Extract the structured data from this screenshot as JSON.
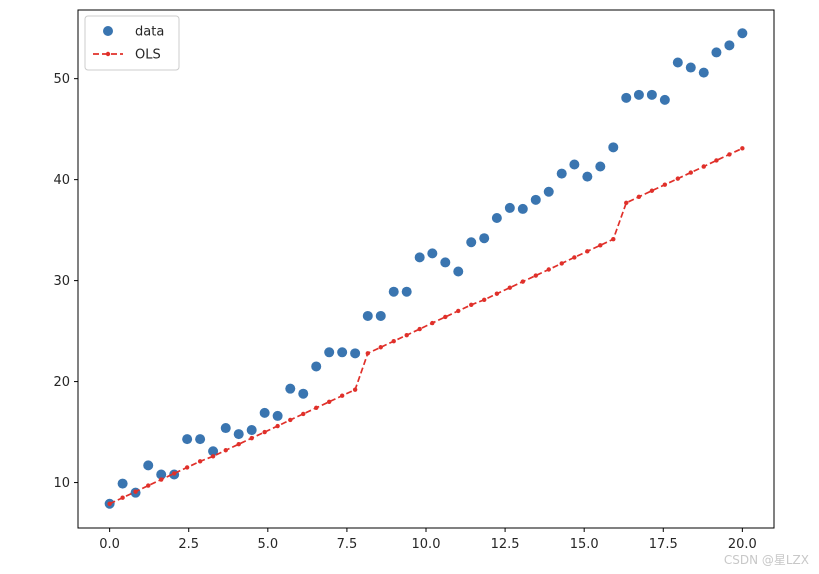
{
  "chart_data": {
    "type": "scatter",
    "title": "",
    "xlabel": "",
    "ylabel": "",
    "xlim": [
      -1.0,
      21.0
    ],
    "ylim": [
      5.5,
      56.8
    ],
    "grid": false,
    "legend_position": "top-left",
    "x_ticks": [
      {
        "value": 0.0,
        "label": "0.0"
      },
      {
        "value": 2.5,
        "label": "2.5"
      },
      {
        "value": 5.0,
        "label": "5.0"
      },
      {
        "value": 7.5,
        "label": "7.5"
      },
      {
        "value": 10.0,
        "label": "10.0"
      },
      {
        "value": 12.5,
        "label": "12.5"
      },
      {
        "value": 15.0,
        "label": "15.0"
      },
      {
        "value": 17.5,
        "label": "17.5"
      },
      {
        "value": 20.0,
        "label": "20.0"
      }
    ],
    "y_ticks": [
      {
        "value": 10,
        "label": "10"
      },
      {
        "value": 20,
        "label": "20"
      },
      {
        "value": 30,
        "label": "30"
      },
      {
        "value": 40,
        "label": "40"
      },
      {
        "value": 50,
        "label": "50"
      }
    ],
    "series": [
      {
        "name": "data",
        "style": "markers",
        "color": "#3a75b0",
        "x": [
          0.0,
          0.41,
          0.82,
          1.22,
          1.63,
          2.04,
          2.45,
          2.86,
          3.27,
          3.67,
          4.08,
          4.49,
          4.9,
          5.31,
          5.71,
          6.12,
          6.53,
          6.94,
          7.35,
          7.76,
          8.16,
          8.57,
          8.98,
          9.39,
          9.8,
          10.2,
          10.61,
          11.02,
          11.43,
          11.84,
          12.24,
          12.65,
          13.06,
          13.47,
          13.88,
          14.29,
          14.69,
          15.1,
          15.51,
          15.92,
          16.33,
          16.73,
          17.14,
          17.55,
          17.96,
          18.37,
          18.78,
          19.18,
          19.59,
          20.0
        ],
        "y": [
          7.9,
          9.9,
          9.0,
          11.7,
          10.8,
          10.8,
          14.3,
          14.3,
          13.1,
          15.4,
          14.8,
          15.2,
          16.9,
          16.6,
          19.3,
          18.8,
          21.5,
          22.9,
          22.9,
          22.8,
          26.5,
          26.5,
          28.9,
          28.9,
          32.3,
          32.7,
          31.8,
          30.9,
          33.8,
          34.2,
          36.2,
          37.2,
          37.1,
          38.0,
          38.8,
          40.6,
          41.5,
          40.3,
          41.3,
          43.2,
          48.1,
          48.4,
          48.4,
          47.9,
          51.6,
          51.1,
          50.6,
          52.6,
          53.3,
          54.5
        ]
      },
      {
        "name": "OLS",
        "style": "dashed-line-markers",
        "color": "#e0302a",
        "x": [
          0.0,
          0.41,
          0.82,
          1.22,
          1.63,
          2.04,
          2.45,
          2.86,
          3.27,
          3.67,
          4.08,
          4.49,
          4.9,
          5.31,
          5.71,
          6.12,
          6.53,
          6.94,
          7.35,
          7.76,
          8.16,
          8.57,
          8.98,
          9.39,
          9.8,
          10.2,
          10.61,
          11.02,
          11.43,
          11.84,
          12.24,
          12.65,
          13.06,
          13.47,
          13.88,
          14.29,
          14.69,
          15.1,
          15.51,
          15.92,
          16.33,
          16.73,
          17.14,
          17.55,
          17.96,
          18.37,
          18.78,
          19.18,
          19.59,
          20.0
        ],
        "y": [
          7.9,
          8.5,
          9.1,
          9.7,
          10.3,
          10.9,
          11.5,
          12.1,
          12.6,
          13.2,
          13.8,
          14.4,
          15.0,
          15.6,
          16.2,
          16.8,
          17.4,
          18.0,
          18.6,
          19.2,
          22.8,
          23.4,
          24.0,
          24.6,
          25.2,
          25.8,
          26.4,
          27.0,
          27.6,
          28.1,
          28.7,
          29.3,
          29.9,
          30.5,
          31.1,
          31.7,
          32.3,
          32.9,
          33.5,
          34.1,
          37.7,
          38.3,
          38.9,
          39.5,
          40.1,
          40.7,
          41.3,
          41.9,
          42.5,
          43.1
        ]
      }
    ]
  },
  "watermark": "CSDN @星LZX"
}
